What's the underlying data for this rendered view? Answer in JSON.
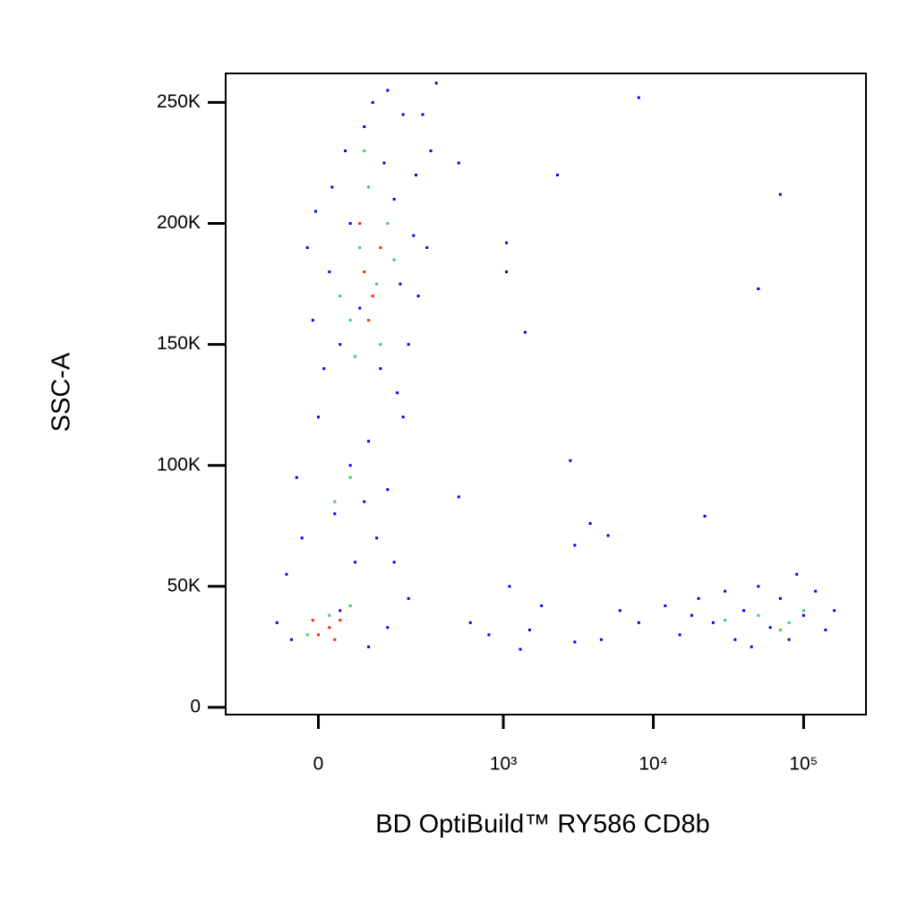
{
  "chart_data": {
    "type": "scatter",
    "x_label": "BD OptiBuild™ RY586 CD8b",
    "y_label": "SSC-A",
    "xscale": "asinh",
    "xlim": [
      -230,
      260000
    ],
    "ylim": [
      -3000,
      262000
    ],
    "xticks": [
      0,
      {
        "value": 1000,
        "label": "10³"
      },
      {
        "value": 10000,
        "label": "10⁴"
      },
      {
        "value": 100000,
        "label": "10⁵"
      }
    ],
    "yticks": [
      0,
      {
        "value": 50000,
        "label": "50K"
      },
      {
        "value": 100000,
        "label": "100K"
      },
      {
        "value": 150000,
        "label": "150K"
      },
      {
        "value": 200000,
        "label": "200K"
      },
      {
        "value": 250000,
        "label": "250K"
      }
    ],
    "series": [
      {
        "color": "#0000ff",
        "x": [
          40,
          90,
          150,
          200,
          60,
          20,
          -20,
          250,
          300,
          180,
          100,
          -40,
          30,
          120,
          70,
          -60,
          150,
          200,
          260,
          320,
          10,
          -10,
          110,
          350,
          130,
          220,
          80,
          50,
          170,
          280,
          0,
          60,
          -30,
          40,
          -80,
          150,
          100,
          -50,
          220,
          170,
          90,
          25,
          240,
          190,
          -5,
          140,
          500,
          1050,
          1050,
          1400,
          2300,
          2800,
          3800,
          5000,
          8000,
          70000,
          50000,
          22000,
          1100,
          600,
          800,
          1500,
          1800,
          3000,
          4500,
          1300,
          500,
          3000,
          12000,
          15000,
          20000,
          25000,
          30000,
          35000,
          40000,
          50000,
          60000,
          70000,
          80000,
          100000,
          120000,
          140000,
          160000,
          18000,
          45000,
          90000,
          8000,
          6000
        ],
        "y": [
          150000,
          240000,
          255000,
          245000,
          200000,
          180000,
          190000,
          220000,
          190000,
          130000,
          110000,
          95000,
          80000,
          70000,
          60000,
          55000,
          90000,
          120000,
          170000,
          230000,
          140000,
          160000,
          250000,
          258000,
          140000,
          150000,
          165000,
          230000,
          210000,
          245000,
          120000,
          100000,
          70000,
          40000,
          35000,
          33000,
          25000,
          28000,
          45000,
          60000,
          85000,
          215000,
          195000,
          175000,
          205000,
          225000,
          225000,
          192000,
          180000,
          155000,
          220000,
          102000,
          76000,
          71000,
          252000,
          212000,
          173000,
          79000,
          50000,
          35000,
          30000,
          32000,
          42000,
          27000,
          28000,
          24000,
          87000,
          67000,
          42000,
          30000,
          45000,
          35000,
          48000,
          28000,
          40000,
          50000,
          33000,
          45000,
          28000,
          38000,
          48000,
          32000,
          40000,
          38000,
          25000,
          55000,
          35000,
          40000
        ]
      },
      {
        "color": "#33cc66",
        "x": [
          80,
          120,
          60,
          150,
          100,
          40,
          130,
          90,
          70,
          170,
          30,
          60,
          20,
          60,
          -20,
          50000,
          80000,
          100000,
          30000,
          70000
        ],
        "y": [
          190000,
          175000,
          160000,
          200000,
          215000,
          170000,
          150000,
          230000,
          145000,
          185000,
          85000,
          95000,
          38000,
          42000,
          30000,
          38000,
          35000,
          40000,
          36000,
          32000
        ]
      },
      {
        "color": "#ff2200",
        "x": [
          90,
          110,
          80,
          130,
          100,
          20,
          0,
          40,
          -10,
          30
        ],
        "y": [
          180000,
          170000,
          200000,
          190000,
          160000,
          33000,
          30000,
          36000,
          36000,
          28000
        ]
      }
    ]
  }
}
